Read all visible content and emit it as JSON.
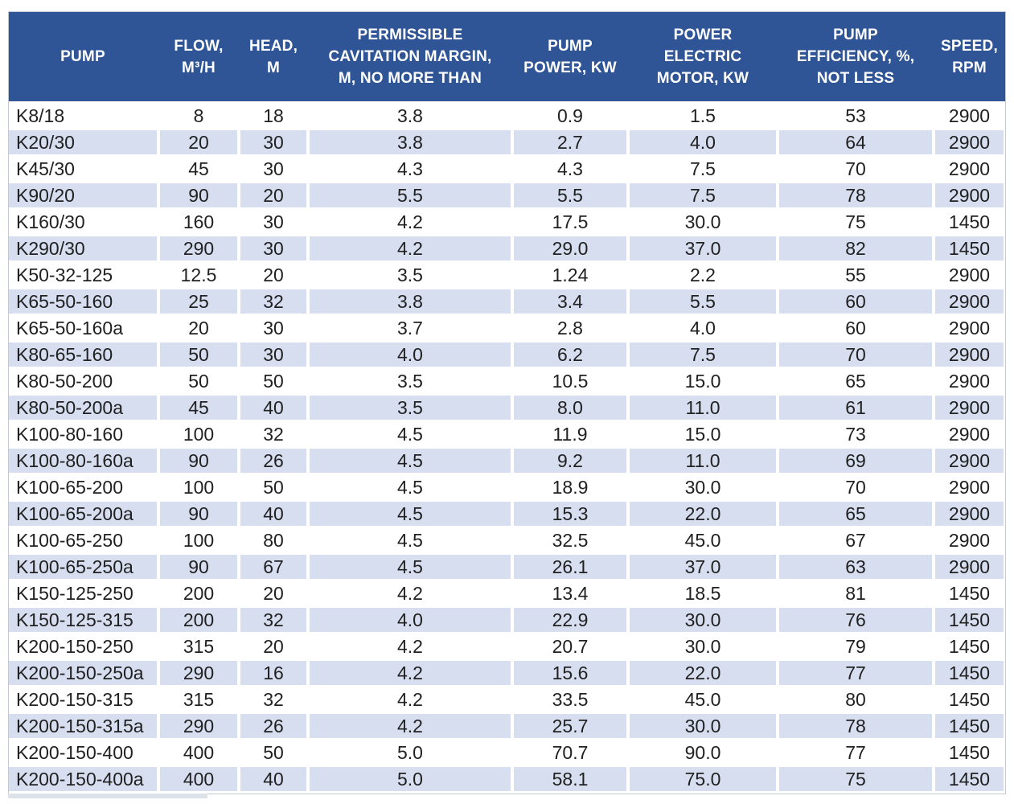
{
  "colors": {
    "header_bg": "#2F5597",
    "header_text": "#FFFFFF",
    "row_bg": "#FFFFFF",
    "row_alt_bg": "#D7DEEF",
    "body_text": "#212121"
  },
  "chart_data": {
    "type": "table",
    "title": "",
    "legend": "none",
    "grid": "alternating-row-stripes",
    "columns": [
      {
        "id": "pump",
        "full_label": "PUMP",
        "label_lines": [
          "PUMP"
        ],
        "align": "left"
      },
      {
        "id": "flow",
        "full_label": "FLOW, M³/H",
        "label_lines": [
          "FLOW,",
          "M³/H"
        ],
        "align": "center"
      },
      {
        "id": "head",
        "full_label": "HEAD, M",
        "label_lines": [
          "HEAD,",
          "M"
        ],
        "align": "center"
      },
      {
        "id": "cavitation",
        "full_label": "PERMISSIBLE CAVITATION MARGIN, M, NO MORE THAN",
        "label_lines": [
          "PERMISSIBLE",
          "CAVITATION MARGIN,",
          "M, NO MORE THAN"
        ],
        "align": "center"
      },
      {
        "id": "pump_power",
        "full_label": "PUMP POWER, KW",
        "label_lines": [
          "PUMP",
          "POWER, KW"
        ],
        "align": "center"
      },
      {
        "id": "motor_power",
        "full_label": "POWER ELECTRIC MOTOR, KW",
        "label_lines": [
          "POWER",
          "ELECTRIC",
          "MOTOR, KW"
        ],
        "align": "center"
      },
      {
        "id": "efficiency",
        "full_label": "PUMP EFFICIENCY, %, NOT LESS",
        "label_lines": [
          "PUMP",
          "EFFICIENCY, %,",
          "NOT LESS"
        ],
        "align": "center"
      },
      {
        "id": "speed",
        "full_label": "SPEED, RPM",
        "label_lines": [
          "SPEED,",
          "RPM"
        ],
        "align": "center"
      }
    ],
    "rows": [
      [
        "K8/18",
        "8",
        "18",
        "3.8",
        "0.9",
        "1.5",
        "53",
        "2900"
      ],
      [
        "K20/30",
        "20",
        "30",
        "3.8",
        "2.7",
        "4.0",
        "64",
        "2900"
      ],
      [
        "K45/30",
        "45",
        "30",
        "4.3",
        "4.3",
        "7.5",
        "70",
        "2900"
      ],
      [
        "K90/20",
        "90",
        "20",
        "5.5",
        "5.5",
        "7.5",
        "78",
        "2900"
      ],
      [
        "K160/30",
        "160",
        "30",
        "4.2",
        "17.5",
        "30.0",
        "75",
        "1450"
      ],
      [
        "K290/30",
        "290",
        "30",
        "4.2",
        "29.0",
        "37.0",
        "82",
        "1450"
      ],
      [
        "K50-32-125",
        "12.5",
        "20",
        "3.5",
        "1.24",
        "2.2",
        "55",
        "2900"
      ],
      [
        "K65-50-160",
        "25",
        "32",
        "3.8",
        "3.4",
        "5.5",
        "60",
        "2900"
      ],
      [
        "K65-50-160a",
        "20",
        "30",
        "3.7",
        "2.8",
        "4.0",
        "60",
        "2900"
      ],
      [
        "K80-65-160",
        "50",
        "30",
        "4.0",
        "6.2",
        "7.5",
        "70",
        "2900"
      ],
      [
        "K80-50-200",
        "50",
        "50",
        "3.5",
        "10.5",
        "15.0",
        "65",
        "2900"
      ],
      [
        "K80-50-200a",
        "45",
        "40",
        "3.5",
        "8.0",
        "11.0",
        "61",
        "2900"
      ],
      [
        "K100-80-160",
        "100",
        "32",
        "4.5",
        "11.9",
        "15.0",
        "73",
        "2900"
      ],
      [
        "K100-80-160a",
        "90",
        "26",
        "4.5",
        "9.2",
        "11.0",
        "69",
        "2900"
      ],
      [
        "K100-65-200",
        "100",
        "50",
        "4.5",
        "18.9",
        "30.0",
        "70",
        "2900"
      ],
      [
        "K100-65-200a",
        "90",
        "40",
        "4.5",
        "15.3",
        "22.0",
        "65",
        "2900"
      ],
      [
        "K100-65-250",
        "100",
        "80",
        "4.5",
        "32.5",
        "45.0",
        "67",
        "2900"
      ],
      [
        "K100-65-250a",
        "90",
        "67",
        "4.5",
        "26.1",
        "37.0",
        "63",
        "2900"
      ],
      [
        "K150-125-250",
        "200",
        "20",
        "4.2",
        "13.4",
        "18.5",
        "81",
        "1450"
      ],
      [
        "K150-125-315",
        "200",
        "32",
        "4.0",
        "22.9",
        "30.0",
        "76",
        "1450"
      ],
      [
        "K200-150-250",
        "315",
        "20",
        "4.2",
        "20.7",
        "30.0",
        "79",
        "1450"
      ],
      [
        "K200-150-250a",
        "290",
        "16",
        "4.2",
        "15.6",
        "22.0",
        "77",
        "1450"
      ],
      [
        "K200-150-315",
        "315",
        "32",
        "4.2",
        "33.5",
        "45.0",
        "80",
        "1450"
      ],
      [
        "K200-150-315a",
        "290",
        "26",
        "4.2",
        "25.7",
        "30.0",
        "78",
        "1450"
      ],
      [
        "K200-150-400",
        "400",
        "50",
        "5.0",
        "70.7",
        "90.0",
        "77",
        "1450"
      ],
      [
        "K200-150-400a",
        "400",
        "40",
        "5.0",
        "58.1",
        "75.0",
        "75",
        "1450"
      ]
    ]
  }
}
